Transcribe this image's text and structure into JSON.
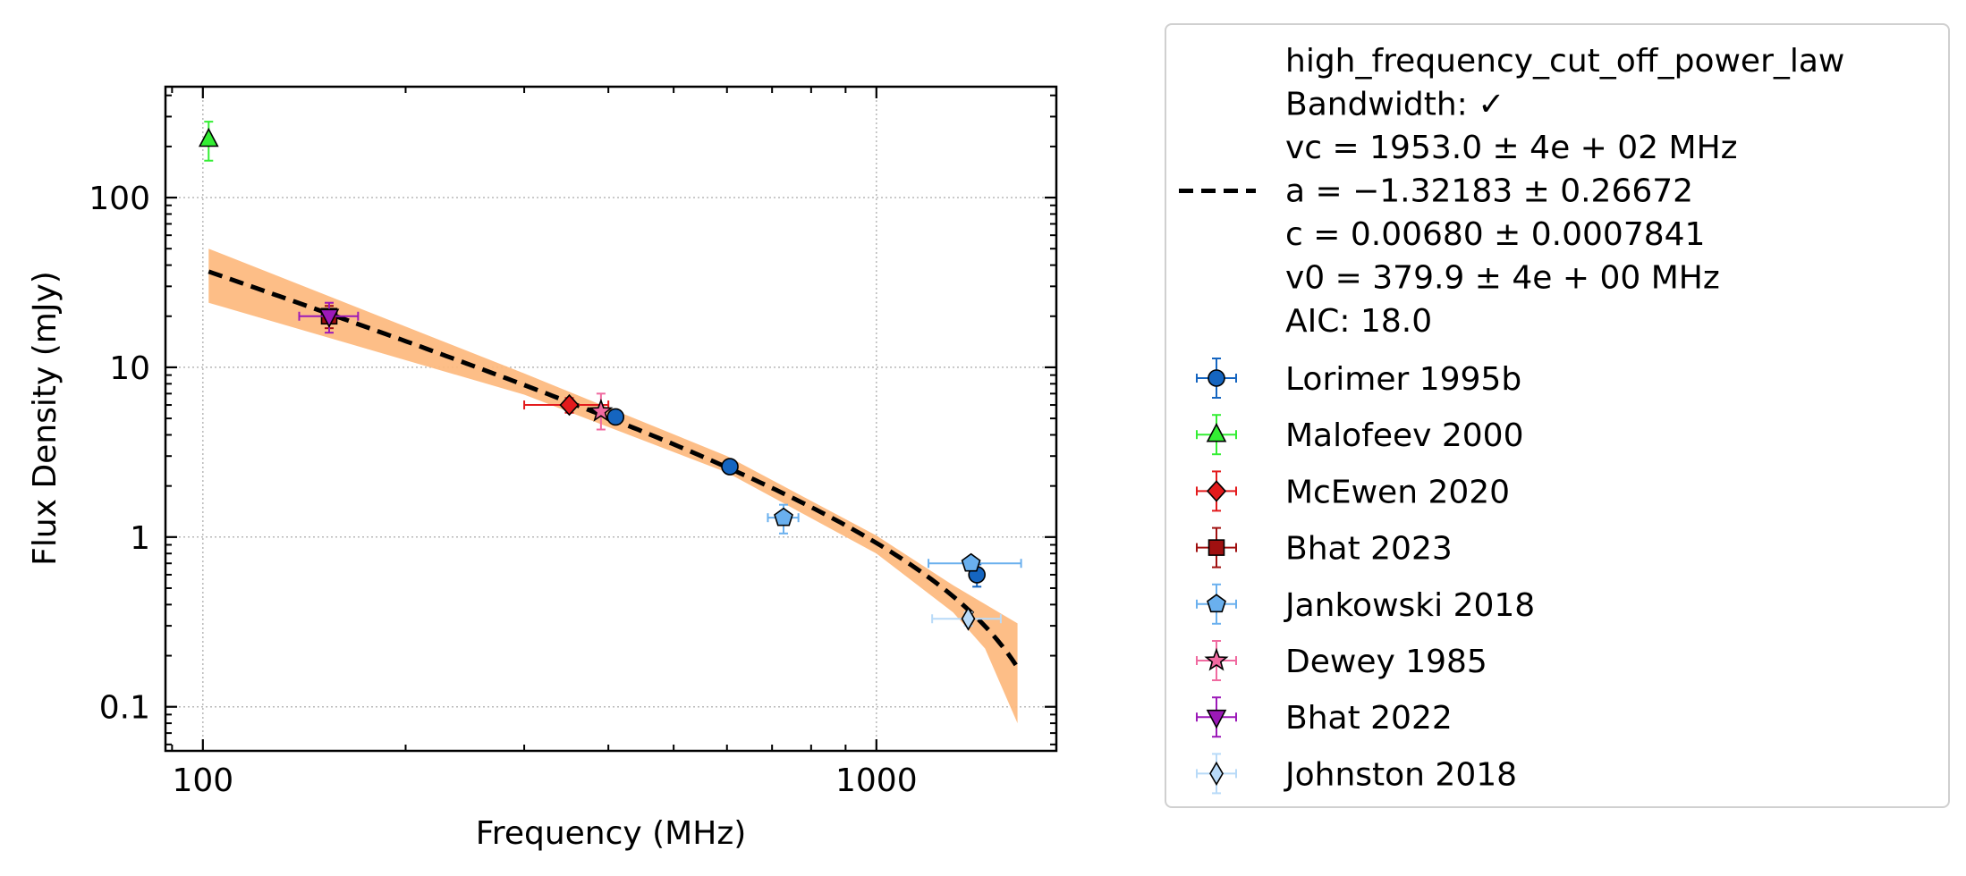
{
  "chart_data": {
    "type": "scatter",
    "xlabel": "Frequency (MHz)",
    "ylabel": "Flux Density (mJy)",
    "xscale": "log",
    "yscale": "log",
    "xlim": [
      88,
      1850
    ],
    "ylim": [
      0.055,
      450
    ],
    "x_ticks": [
      100,
      1000
    ],
    "x_tick_labels": [
      "100",
      "1000"
    ],
    "y_ticks": [
      0.1,
      1,
      10,
      100
    ],
    "y_tick_labels": [
      "0.1",
      "1",
      "10",
      "100"
    ],
    "grid": true,
    "legend_position": "outside-right",
    "fit": {
      "model_name": "high_frequency_cut_off_power_law",
      "legend_lines": [
        "high_frequency_cut_off_power_law",
        "Bandwidth: ✓",
        "vc = 1953.0 ± 4e + 02 MHz",
        "a = −1.32183 ± 0.26672",
        "c = 0.00680 ± 0.0007841",
        "v0 = 379.9 ± 4e + 00 MHz",
        "AIC: 18.0"
      ],
      "params": {
        "vc": 1953.0,
        "a": -1.32183,
        "c": 0.0068,
        "v0": 379.9
      },
      "x_range": [
        102,
        1620
      ],
      "line_color": "#000000",
      "band_color": "#fdb97d",
      "band_upper": [
        [
          102,
          50
        ],
        [
          300,
          9.2
        ],
        [
          600,
          3.0
        ],
        [
          1000,
          1.02
        ],
        [
          1300,
          0.52
        ],
        [
          1620,
          0.31
        ]
      ],
      "band_lower": [
        [
          102,
          24
        ],
        [
          300,
          6.9
        ],
        [
          600,
          2.4
        ],
        [
          1000,
          0.8
        ],
        [
          1300,
          0.36
        ],
        [
          1450,
          0.22
        ],
        [
          1620,
          0.08
        ]
      ]
    },
    "series": [
      {
        "name": "Lorimer 1995b",
        "marker": "circle",
        "color": "#1565c0",
        "ecolor": "#1565c0",
        "points": [
          {
            "x": 410,
            "y": 5.1,
            "yerr": [
              5.1,
              5.1
            ]
          },
          {
            "x": 606,
            "y": 2.6,
            "yerr": [
              2.6,
              2.6
            ]
          },
          {
            "x": 1410,
            "y": 0.6,
            "yerr": [
              0.51,
              0.69
            ]
          }
        ]
      },
      {
        "name": "Malofeev 2000",
        "marker": "triangle-up",
        "color": "#33ee33",
        "ecolor": "#33ee33",
        "points": [
          {
            "x": 102,
            "y": 220,
            "yerr": [
              165,
              280
            ]
          }
        ]
      },
      {
        "name": "McEwen 2020",
        "marker": "diamond",
        "color": "#e31a1c",
        "ecolor": "#e31a1c",
        "points": [
          {
            "x": 350,
            "y": 6.0,
            "yerr": [
              5.4,
              6.6
            ],
            "xerr": [
              300,
              400
            ]
          }
        ]
      },
      {
        "name": "Bhat 2023",
        "marker": "square",
        "color": "#a01010",
        "ecolor": "#a01010",
        "points": [
          {
            "x": 154,
            "y": 20,
            "yerr": [
              17,
              23
            ]
          }
        ]
      },
      {
        "name": "Jankowski 2018",
        "marker": "pentagon",
        "color": "#6ab0ee",
        "ecolor": "#6ab0ee",
        "points": [
          {
            "x": 728,
            "y": 1.3,
            "yerr": [
              1.05,
              1.55
            ],
            "xerr": [
              690,
              766
            ]
          },
          {
            "x": 1382,
            "y": 0.7,
            "yerr": [
              0.64,
              0.76
            ],
            "xerr": [
              1195,
              1640
            ]
          }
        ]
      },
      {
        "name": "Dewey 1985",
        "marker": "star",
        "color": "#f06aa0",
        "ecolor": "#f06aa0",
        "points": [
          {
            "x": 390,
            "y": 5.5,
            "yerr": [
              4.3,
              7.0
            ]
          }
        ]
      },
      {
        "name": "Bhat 2022",
        "marker": "triangle-down",
        "color": "#9c19b8",
        "ecolor": "#9c19b8",
        "points": [
          {
            "x": 154,
            "y": 20,
            "yerr": [
              16,
              24
            ],
            "xerr": [
              139,
              170
            ]
          }
        ]
      },
      {
        "name": "Johnston 2018",
        "marker": "thin-diamond",
        "color": "#b8daf8",
        "ecolor": "#b8daf8",
        "points": [
          {
            "x": 1369,
            "y": 0.33,
            "yerr": [
              0.3,
              0.36
            ],
            "xerr": [
              1210,
              1530
            ]
          }
        ]
      }
    ]
  }
}
